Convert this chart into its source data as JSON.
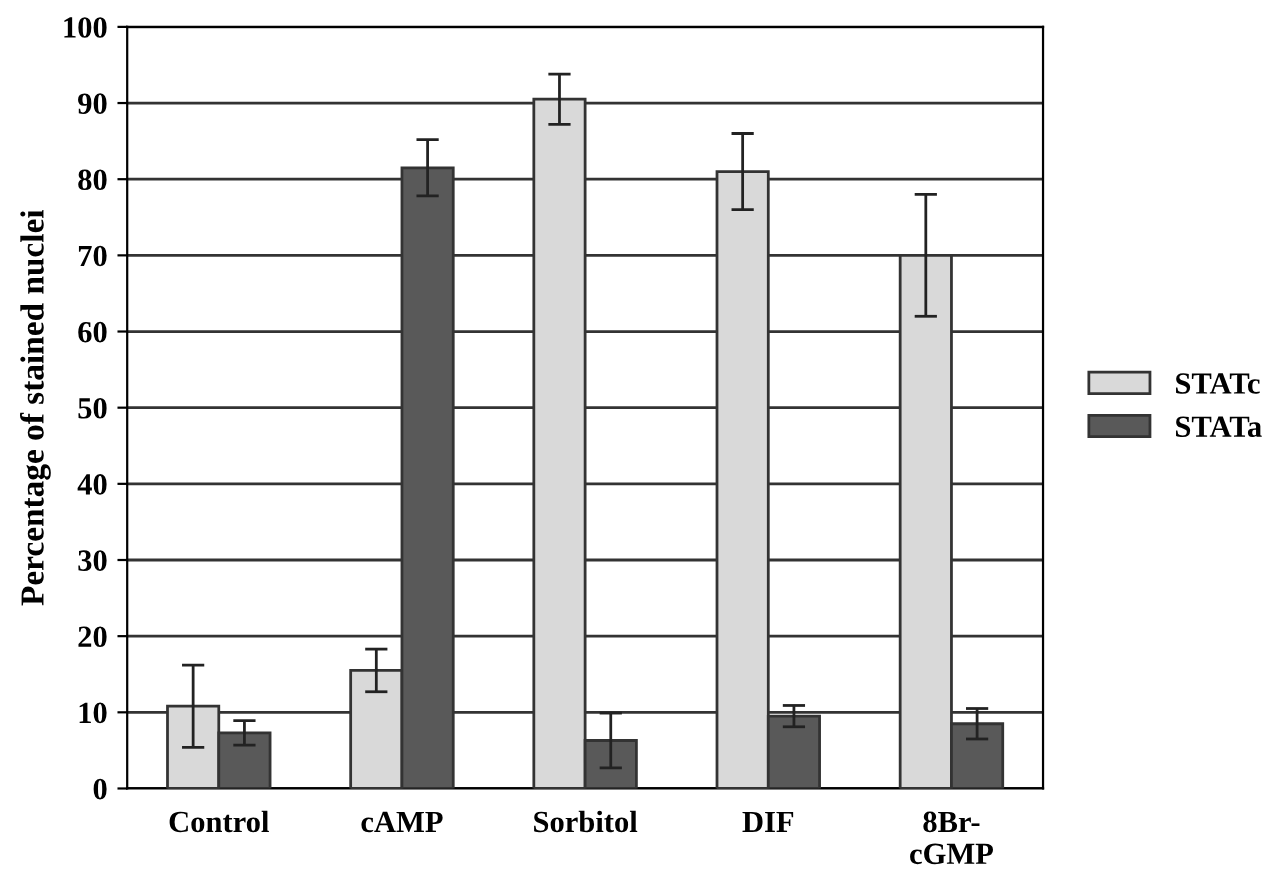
{
  "chart_data": {
    "type": "bar",
    "ylabel": "Percentage of stained nuclei",
    "categories": [
      "Control",
      "cAMP",
      "Sorbitol",
      "DIF",
      "8Br-\ncGMP"
    ],
    "series": [
      {
        "name": "STATc",
        "color": "#d9d9d9",
        "values": [
          10.8,
          15.5,
          90.5,
          81,
          70
        ],
        "errors": [
          5.4,
          2.8,
          3.3,
          5,
          8
        ]
      },
      {
        "name": "STATa",
        "color": "#595959",
        "values": [
          7.3,
          81.5,
          6.3,
          9.5,
          8.5
        ],
        "errors": [
          1.6,
          3.7,
          3.6,
          1.4,
          2
        ]
      }
    ],
    "ylim": [
      0,
      100
    ],
    "yticks": [
      0,
      10,
      20,
      30,
      40,
      50,
      60,
      70,
      80,
      90,
      100
    ],
    "grid": "y",
    "legend": "right"
  }
}
